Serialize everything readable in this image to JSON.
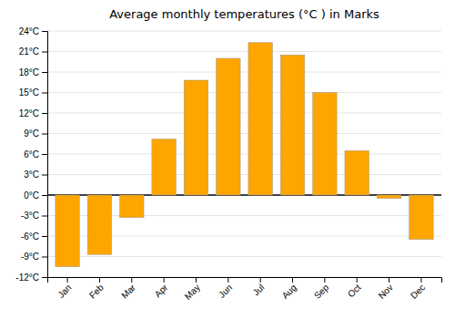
{
  "chart_data": {
    "type": "bar",
    "title": "Average monthly temperatures (°C ) in Marks",
    "categories": [
      "Jan",
      "Feb",
      "Mar",
      "Apr",
      "May",
      "Jun",
      "Jul",
      "Aug",
      "Sep",
      "Oct",
      "Nov",
      "Dec"
    ],
    "values": [
      -10.5,
      -8.7,
      -3.3,
      8.2,
      16.8,
      20.0,
      22.3,
      20.5,
      15.0,
      6.5,
      -0.5,
      -6.5
    ],
    "color": "#FFA500",
    "ylim": [
      -12,
      24
    ],
    "yticks": [
      {
        "value": -12,
        "label": "-12°C"
      },
      {
        "value": -9,
        "label": "-9°C"
      },
      {
        "value": -6,
        "label": "-6°C"
      },
      {
        "value": -3,
        "label": "-3°C"
      },
      {
        "value": 0,
        "label": "0°C"
      },
      {
        "value": 3,
        "label": "3°C"
      },
      {
        "value": 6,
        "label": "6°C"
      },
      {
        "value": 9,
        "label": "9°C"
      },
      {
        "value": 12,
        "label": "12°C"
      },
      {
        "value": 15,
        "label": "15°C"
      },
      {
        "value": 18,
        "label": "18°C"
      },
      {
        "value": 21,
        "label": "21°C"
      },
      {
        "value": 24,
        "label": "24°C"
      }
    ],
    "grid": true
  }
}
